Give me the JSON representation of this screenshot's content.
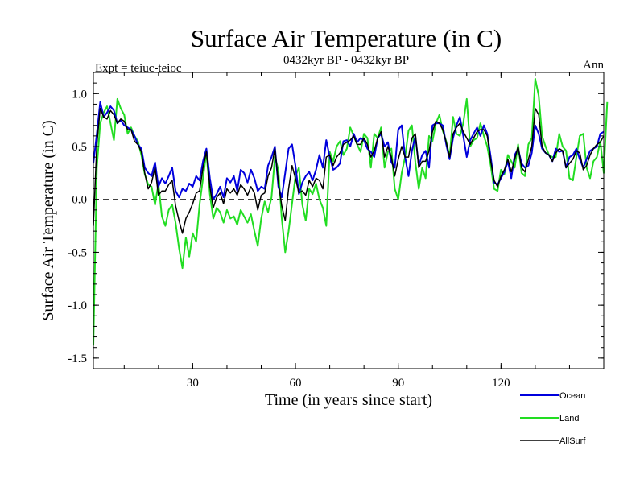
{
  "chart_data": {
    "type": "line",
    "title": "Surface Air Temperature (in C)",
    "subtitle": "0432kyr BP - 0432kyr BP",
    "left_note": "Expt = teiuc-teioc",
    "right_note": "Ann",
    "xlabel": "Time (in years since start)",
    "ylabel": "Surface Air Temperature (in C)",
    "xlim": [
      1,
      150
    ],
    "ylim": [
      -1.6,
      1.2
    ],
    "xticks": [
      30,
      60,
      90,
      120
    ],
    "xtick_labels": [
      "30",
      "60",
      "90",
      "120"
    ],
    "yticks": [
      -1.5,
      -1.0,
      -0.5,
      0.0,
      0.5,
      1.0
    ],
    "ytick_labels": [
      "-1.5",
      "-1.0",
      "-0.5",
      "0.0",
      "0.5",
      "1.0"
    ],
    "reference_line": 0.0,
    "x_start": 1,
    "series": [
      {
        "name": "Ocean",
        "color": "#0000dd",
        "values": [
          0.34,
          0.62,
          0.92,
          0.78,
          0.82,
          0.88,
          0.84,
          0.72,
          0.75,
          0.7,
          0.68,
          0.66,
          0.6,
          0.52,
          0.48,
          0.3,
          0.25,
          0.22,
          0.35,
          0.12,
          0.2,
          0.15,
          0.22,
          0.3,
          0.08,
          0.02,
          0.1,
          0.08,
          0.15,
          0.12,
          0.22,
          0.18,
          0.36,
          0.48,
          0.2,
          0.0,
          0.05,
          0.12,
          0.02,
          0.2,
          0.16,
          0.22,
          0.08,
          0.28,
          0.25,
          0.16,
          0.28,
          0.2,
          0.08,
          0.12,
          0.1,
          0.32,
          0.4,
          0.5,
          0.12,
          0.02,
          0.25,
          0.48,
          0.52,
          0.32,
          0.05,
          0.16,
          0.22,
          0.26,
          0.18,
          0.28,
          0.42,
          0.3,
          0.56,
          0.4,
          0.28,
          0.3,
          0.34,
          0.55,
          0.56,
          0.5,
          0.62,
          0.54,
          0.58,
          0.56,
          0.48,
          0.45,
          0.4,
          0.58,
          0.62,
          0.5,
          0.54,
          0.35,
          0.3,
          0.66,
          0.7,
          0.4,
          0.22,
          0.46,
          0.6,
          0.32,
          0.42,
          0.46,
          0.3,
          0.7,
          0.72,
          0.72,
          0.7,
          0.52,
          0.38,
          0.58,
          0.7,
          0.78,
          0.6,
          0.4,
          0.56,
          0.62,
          0.68,
          0.6,
          0.7,
          0.62,
          0.4,
          0.16,
          0.14,
          0.2,
          0.26,
          0.36,
          0.2,
          0.42,
          0.48,
          0.34,
          0.3,
          0.32,
          0.44,
          0.7,
          0.62,
          0.48,
          0.44,
          0.42,
          0.36,
          0.48,
          0.45,
          0.46,
          0.3,
          0.4,
          0.42,
          0.48,
          0.38,
          0.3,
          0.38,
          0.46,
          0.48,
          0.5,
          0.62,
          0.64
        ]
      },
      {
        "name": "Land",
        "color": "#22dd22",
        "values": [
          -1.38,
          0.3,
          0.72,
          0.82,
          0.88,
          0.72,
          0.56,
          0.95,
          0.86,
          0.8,
          0.62,
          0.68,
          0.6,
          0.55,
          0.42,
          0.24,
          0.14,
          0.12,
          -0.05,
          0.15,
          -0.16,
          -0.25,
          -0.1,
          -0.05,
          -0.22,
          -0.46,
          -0.65,
          -0.36,
          -0.54,
          -0.32,
          -0.4,
          -0.05,
          0.2,
          0.45,
          0.05,
          -0.18,
          -0.08,
          -0.12,
          -0.22,
          -0.1,
          -0.18,
          -0.16,
          -0.24,
          -0.1,
          -0.16,
          -0.22,
          -0.14,
          -0.3,
          -0.44,
          -0.18,
          -0.02,
          -0.12,
          0.02,
          0.4,
          0.28,
          -0.18,
          -0.5,
          -0.3,
          -0.04,
          0.22,
          0.3,
          -0.05,
          -0.2,
          0.1,
          0.05,
          0.15,
          0.0,
          -0.08,
          -0.25,
          0.45,
          0.36,
          0.5,
          0.55,
          0.42,
          0.48,
          0.68,
          0.6,
          0.52,
          0.45,
          0.62,
          0.58,
          0.3,
          0.62,
          0.58,
          0.68,
          0.3,
          0.45,
          0.48,
          0.1,
          0.0,
          0.25,
          0.4,
          0.65,
          0.7,
          0.35,
          0.1,
          0.3,
          0.2,
          0.6,
          0.55,
          0.72,
          0.8,
          0.65,
          0.55,
          0.4,
          0.78,
          0.62,
          0.6,
          0.72,
          0.95,
          0.5,
          0.56,
          0.58,
          0.72,
          0.6,
          0.5,
          0.32,
          0.1,
          0.08,
          0.28,
          0.24,
          0.42,
          0.36,
          0.3,
          0.52,
          0.25,
          0.22,
          0.52,
          0.58,
          1.14,
          0.98,
          0.6,
          0.5,
          0.42,
          0.4,
          0.4,
          0.62,
          0.5,
          0.46,
          0.2,
          0.18,
          0.4,
          0.6,
          0.62,
          0.3,
          0.2,
          0.36,
          0.4,
          0.55,
          0.25,
          0.92
        ]
      },
      {
        "name": "AllSurf",
        "color": "#000000",
        "values": [
          -0.25,
          0.52,
          0.86,
          0.78,
          0.76,
          0.84,
          0.8,
          0.72,
          0.76,
          0.74,
          0.66,
          0.66,
          0.55,
          0.52,
          0.45,
          0.25,
          0.1,
          0.16,
          0.3,
          0.04,
          0.08,
          0.08,
          0.14,
          0.18,
          -0.06,
          -0.2,
          -0.32,
          -0.18,
          -0.12,
          -0.04,
          0.06,
          0.08,
          0.3,
          0.45,
          0.12,
          -0.08,
          0.02,
          0.06,
          -0.04,
          0.1,
          0.06,
          0.1,
          0.04,
          0.14,
          0.1,
          0.04,
          0.12,
          0.06,
          -0.1,
          0.04,
          0.06,
          0.22,
          0.3,
          0.48,
          0.16,
          -0.06,
          -0.2,
          0.1,
          0.32,
          0.2,
          0.06,
          0.08,
          0.04,
          0.18,
          0.12,
          0.2,
          0.18,
          0.1,
          0.4,
          0.42,
          0.32,
          0.4,
          0.44,
          0.52,
          0.54,
          0.56,
          0.6,
          0.52,
          0.52,
          0.58,
          0.52,
          0.4,
          0.46,
          0.58,
          0.64,
          0.4,
          0.5,
          0.4,
          0.22,
          0.38,
          0.5,
          0.4,
          0.4,
          0.58,
          0.62,
          0.3,
          0.36,
          0.36,
          0.46,
          0.64,
          0.74,
          0.72,
          0.66,
          0.54,
          0.4,
          0.62,
          0.68,
          0.72,
          0.64,
          0.58,
          0.52,
          0.58,
          0.64,
          0.66,
          0.66,
          0.6,
          0.36,
          0.18,
          0.12,
          0.22,
          0.28,
          0.38,
          0.26,
          0.38,
          0.5,
          0.3,
          0.26,
          0.38,
          0.5,
          0.86,
          0.8,
          0.5,
          0.44,
          0.42,
          0.36,
          0.44,
          0.48,
          0.46,
          0.3,
          0.34,
          0.38,
          0.46,
          0.44,
          0.28,
          0.32,
          0.42,
          0.48,
          0.52,
          0.54,
          0.6
        ]
      }
    ],
    "legend": [
      "Ocean",
      "Land",
      "AllSurf"
    ],
    "legend_position": "bottom-right"
  }
}
